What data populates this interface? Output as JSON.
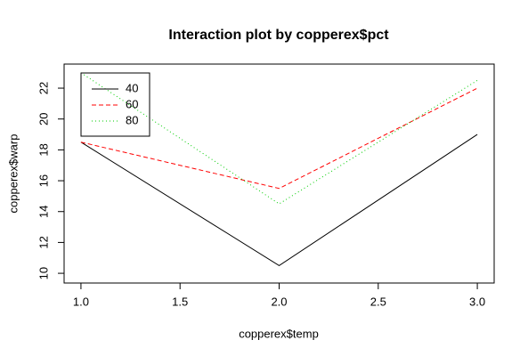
{
  "chart_data": {
    "type": "line",
    "title": "Interaction plot by copperex$pct",
    "xlabel": "copperex$temp",
    "ylabel": "copperex$warp",
    "x": [
      1,
      2,
      3
    ],
    "series": [
      {
        "name": "40",
        "color": "#000000",
        "dash": "solid",
        "values": [
          18.5,
          10.5,
          19
        ]
      },
      {
        "name": "60",
        "color": "#ff0000",
        "dash": "dashed",
        "values": [
          18.5,
          15.5,
          22
        ]
      },
      {
        "name": "80",
        "color": "#00cd00",
        "dash": "dotted",
        "values": [
          23,
          14.5,
          22.5
        ]
      }
    ],
    "xlim": [
      0.915,
      3.085
    ],
    "xticks": [
      {
        "value": 1,
        "label": "1.0"
      },
      1.5,
      {
        "value": 2,
        "label": "2.0"
      },
      2.5,
      {
        "value": 3,
        "label": "3.0"
      }
    ],
    "ylim": [
      9.37,
      23.56
    ],
    "yticks": [
      10,
      12,
      14,
      16,
      18,
      20,
      22
    ],
    "grid": false,
    "legend": "top-left"
  }
}
